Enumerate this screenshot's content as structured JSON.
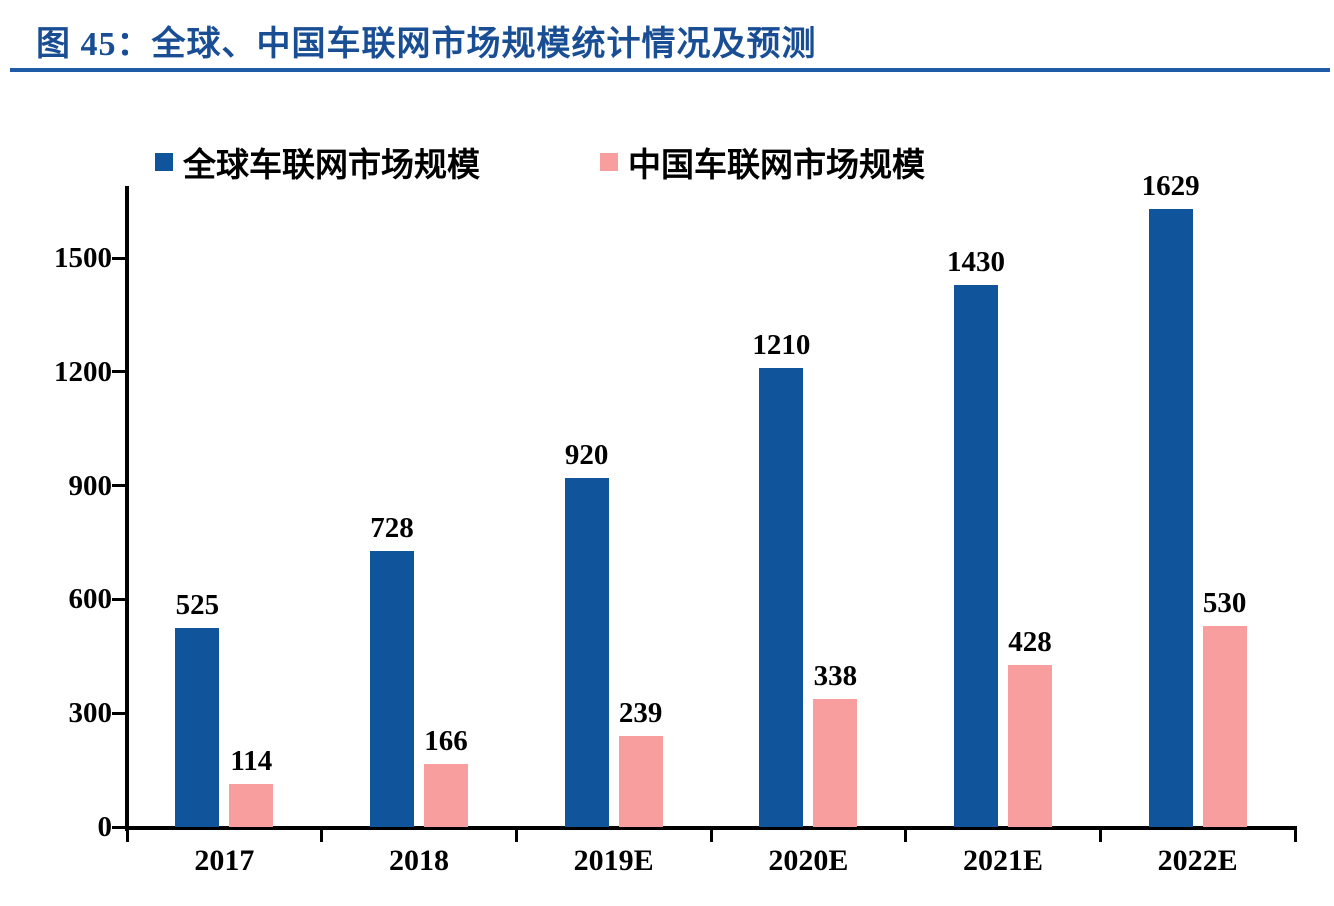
{
  "title": {
    "text": "图 45：全球、中国车联网市场规模统计情况及预测"
  },
  "colors": {
    "title_text": "#1A4E94",
    "title_rule": "#1E5CA8",
    "global_bar": "#10549B",
    "china_bar": "#F99E9E",
    "axis": "#000000",
    "label_text": "#000000"
  },
  "legend": [
    {
      "name": "全球车联网市场规模",
      "color": "#10549B"
    },
    {
      "name": "中国车联网市场规模",
      "color": "#F99E9E"
    }
  ],
  "chart_data": {
    "type": "bar",
    "categories": [
      "2017",
      "2018",
      "2019E",
      "2020E",
      "2021E",
      "2022E"
    ],
    "series": [
      {
        "name": "全球车联网市场规模",
        "color": "#10549B",
        "values": [
          525,
          728,
          920,
          1210,
          1430,
          1629
        ]
      },
      {
        "name": "中国车联网市场规模",
        "color": "#F99E9E",
        "values": [
          114,
          166,
          239,
          338,
          428,
          530
        ]
      }
    ],
    "yticks": [
      0,
      300,
      600,
      900,
      1200,
      1500
    ],
    "ylim": [
      0,
      1686
    ],
    "xlabel": "",
    "ylabel": "",
    "grid": false,
    "legend_position": "top",
    "data_labels": true
  }
}
